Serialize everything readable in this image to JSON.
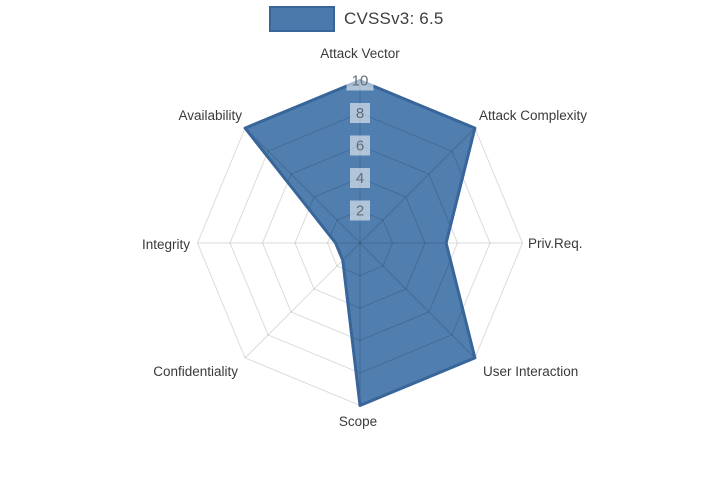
{
  "chart_data": {
    "type": "radar",
    "title": "",
    "categories": [
      "Attack Vector",
      "Attack Complexity",
      "Priv.Req.",
      "User Interaction",
      "Scope",
      "Confidentiality",
      "Integrity",
      "Availability"
    ],
    "series": [
      {
        "name": "CVSSv3: 6.5",
        "values": [
          10,
          10,
          5.3,
          10,
          10,
          1.5,
          1.5,
          10
        ],
        "fill_color": "#4a7aab",
        "line_color": "#38669a"
      }
    ],
    "radial_axis": {
      "ticks": [
        2,
        4,
        6,
        8,
        10
      ],
      "range": [
        0,
        10
      ],
      "tick_text_color": "#666666",
      "tick_bg_color": "rgba(255,255,255,0.55)"
    },
    "grid": true,
    "grid_color": "rgba(0,0,0,0.14)",
    "legend_position": "top-center",
    "axis_label_color": "#3a3a3a"
  }
}
